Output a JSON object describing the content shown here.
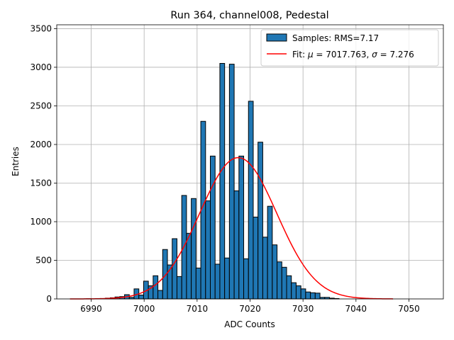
{
  "chart_data": {
    "type": "histogram",
    "title": "Run 364, channel008, Pedestal",
    "xlabel": "ADC Counts",
    "ylabel": "Entries",
    "xlim": [
      6983.5,
      7056.5
    ],
    "ylim": [
      0,
      3550
    ],
    "xticks": [
      6990,
      7000,
      7010,
      7020,
      7030,
      7040,
      7050
    ],
    "yticks": [
      0,
      500,
      1000,
      1500,
      2000,
      2500,
      3000,
      3500
    ],
    "grid": true,
    "legend_position": "upper-right",
    "bar_color": "#1f77b4",
    "bar_edge_color": "#000000",
    "fit_color": "#ff0000",
    "bin_edges_start": 6985.5,
    "bin_width": 0.9,
    "counts": [
      0,
      0,
      0,
      0,
      2,
      0,
      5,
      5,
      10,
      15,
      25,
      30,
      55,
      20,
      130,
      50,
      230,
      170,
      300,
      110,
      640,
      440,
      780,
      290,
      1340,
      850,
      1300,
      400,
      2300,
      1270,
      1850,
      450,
      3050,
      530,
      3040,
      1400,
      1850,
      520,
      2560,
      1060,
      2030,
      800,
      1200,
      700,
      480,
      410,
      300,
      210,
      170,
      130,
      90,
      80,
      75,
      20,
      20,
      10,
      5,
      0,
      0,
      0,
      0,
      0,
      0,
      0,
      0,
      0,
      0,
      0,
      0,
      0,
      0,
      0,
      0,
      0,
      0,
      0,
      0
    ],
    "fit": {
      "mu": 7017.763,
      "sigma": 7.276,
      "amplitude": 1830,
      "x_range": [
        6986,
        7047
      ]
    },
    "legend": {
      "samples_label": "Samples: RMS=7.17",
      "fit_prefix": "Fit: ",
      "fit_mu_symbol": "μ",
      "fit_mu_value": " = 7017.763, ",
      "fit_sigma_symbol": "σ",
      "fit_sigma_value": " = 7.276"
    }
  }
}
